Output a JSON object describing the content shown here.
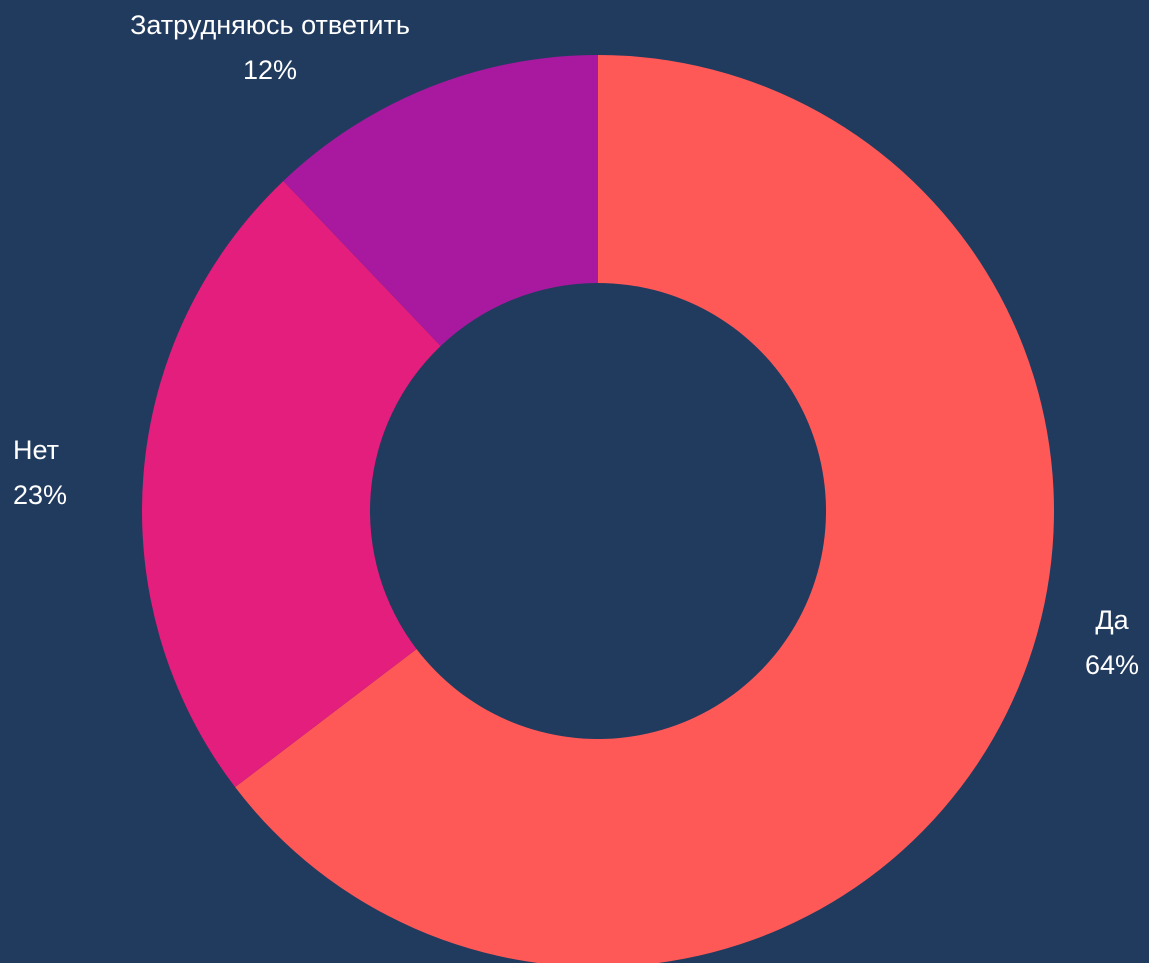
{
  "chart_data": {
    "type": "donut",
    "categories": [
      "Да",
      "Нет",
      "Затрудняюсь ответить"
    ],
    "values": [
      64,
      23,
      12
    ],
    "value_labels": [
      "64%",
      "23%",
      "12%"
    ],
    "colors": [
      "#ff5957",
      "#e31e7d",
      "#a8199f"
    ]
  }
}
